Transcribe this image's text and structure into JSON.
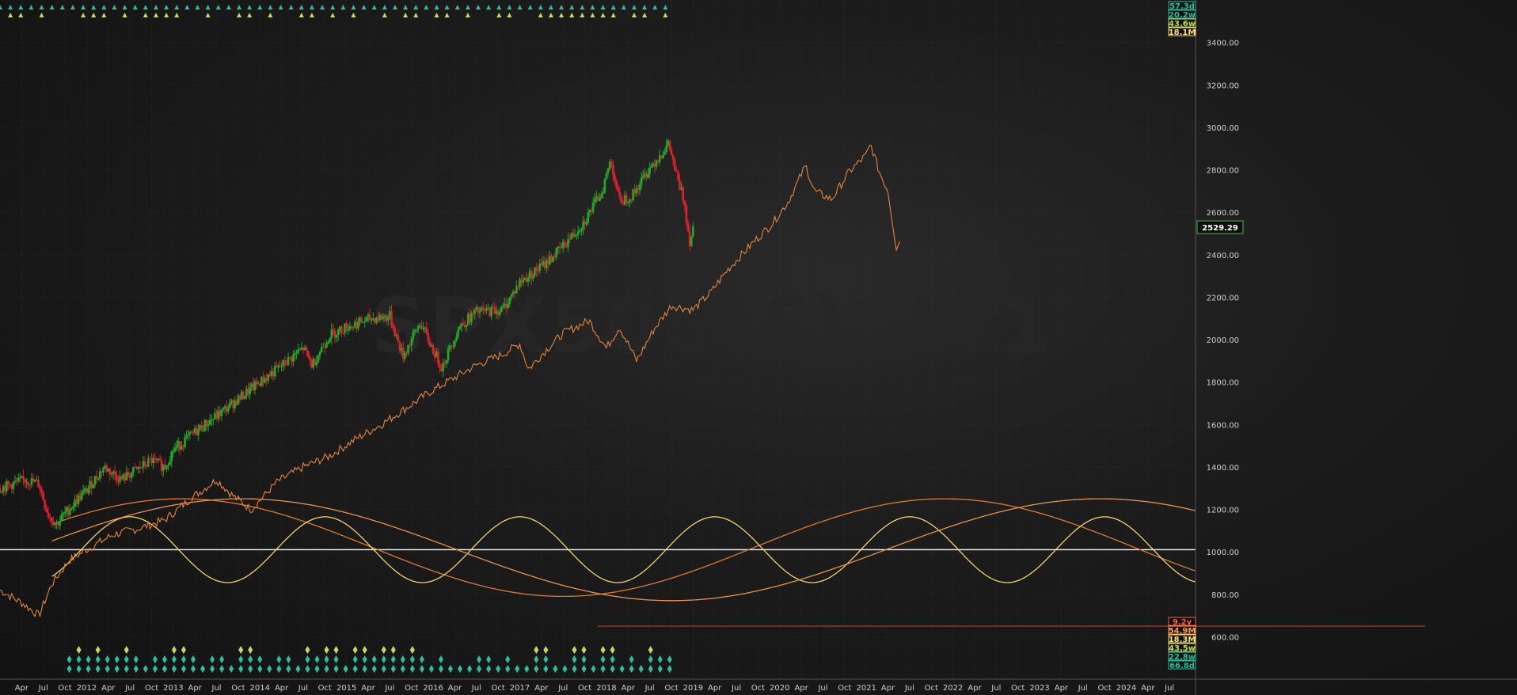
{
  "chart_data": {
    "type": "line",
    "title": "SPX500(£), W1",
    "y_axis": {
      "range": [
        400,
        3600
      ],
      "ticks": [
        600,
        800,
        1000,
        1200,
        1400,
        1600,
        1800,
        2000,
        2200,
        2400,
        2600,
        2800,
        3000,
        3200,
        3400
      ],
      "tick_labels": [
        "600.00",
        "800.00",
        "1000.00",
        "1200.00",
        "1400.00",
        "1600.00",
        "1800.00",
        "2000.00",
        "2200.00",
        "2400.00",
        "2600.00",
        "2800.00",
        "3000.00",
        "3200.00",
        "3400.00"
      ]
    },
    "x_axis": {
      "range": [
        2011.0,
        2024.8
      ],
      "labels": [
        {
          "label": "Apr",
          "t": 2011.25
        },
        {
          "label": "Jul",
          "t": 2011.5
        },
        {
          "label": "Oct",
          "t": 2011.75
        },
        {
          "label": "2012",
          "t": 2012.0
        },
        {
          "label": "Apr",
          "t": 2012.25
        },
        {
          "label": "Jul",
          "t": 2012.5
        },
        {
          "label": "Oct",
          "t": 2012.75
        },
        {
          "label": "2013",
          "t": 2013.0
        },
        {
          "label": "Apr",
          "t": 2013.25
        },
        {
          "label": "Jul",
          "t": 2013.5
        },
        {
          "label": "Oct",
          "t": 2013.75
        },
        {
          "label": "2014",
          "t": 2014.0
        },
        {
          "label": "Apr",
          "t": 2014.25
        },
        {
          "label": "Jul",
          "t": 2014.5
        },
        {
          "label": "Oct",
          "t": 2014.75
        },
        {
          "label": "2015",
          "t": 2015.0
        },
        {
          "label": "Apr",
          "t": 2015.25
        },
        {
          "label": "Jul",
          "t": 2015.5
        },
        {
          "label": "Oct",
          "t": 2015.75
        },
        {
          "label": "2016",
          "t": 2016.0
        },
        {
          "label": "Apr",
          "t": 2016.25
        },
        {
          "label": "Jul",
          "t": 2016.5
        },
        {
          "label": "Oct",
          "t": 2016.75
        },
        {
          "label": "2017",
          "t": 2017.0
        },
        {
          "label": "Apr",
          "t": 2017.25
        },
        {
          "label": "Jul",
          "t": 2017.5
        },
        {
          "label": "Oct",
          "t": 2017.75
        },
        {
          "label": "2018",
          "t": 2018.0
        },
        {
          "label": "Apr",
          "t": 2018.25
        },
        {
          "label": "Jul",
          "t": 2018.5
        },
        {
          "label": "Oct",
          "t": 2018.75
        },
        {
          "label": "2019",
          "t": 2019.0
        },
        {
          "label": "Apr",
          "t": 2019.25
        },
        {
          "label": "Jul",
          "t": 2019.5
        },
        {
          "label": "Oct",
          "t": 2019.75
        },
        {
          "label": "2020",
          "t": 2020.0
        },
        {
          "label": "Apr",
          "t": 2020.25
        },
        {
          "label": "Jul",
          "t": 2020.5
        },
        {
          "label": "Oct",
          "t": 2020.75
        },
        {
          "label": "2021",
          "t": 2021.0
        },
        {
          "label": "Apr",
          "t": 2021.25
        },
        {
          "label": "Jul",
          "t": 2021.5
        },
        {
          "label": "Oct",
          "t": 2021.75
        },
        {
          "label": "2022",
          "t": 2022.0
        },
        {
          "label": "Apr",
          "t": 2022.25
        },
        {
          "label": "Jul",
          "t": 2022.5
        },
        {
          "label": "Oct",
          "t": 2022.75
        },
        {
          "label": "2023",
          "t": 2023.0
        },
        {
          "label": "Apr",
          "t": 2023.25
        },
        {
          "label": "Jul",
          "t": 2023.5
        },
        {
          "label": "Oct",
          "t": 2023.75
        },
        {
          "label": "2024",
          "t": 2024.0
        },
        {
          "label": "Apr",
          "t": 2024.25
        },
        {
          "label": "Jul",
          "t": 2024.5
        }
      ]
    },
    "last_price_label": "2529.29",
    "price_series": [
      [
        2011.0,
        1300
      ],
      [
        2011.3,
        1340
      ],
      [
        2011.45,
        1320
      ],
      [
        2011.55,
        1180
      ],
      [
        2011.65,
        1130
      ],
      [
        2011.75,
        1180
      ],
      [
        2011.9,
        1250
      ],
      [
        2012.0,
        1290
      ],
      [
        2012.2,
        1400
      ],
      [
        2012.4,
        1340
      ],
      [
        2012.55,
        1380
      ],
      [
        2012.75,
        1430
      ],
      [
        2012.9,
        1400
      ],
      [
        2013.0,
        1480
      ],
      [
        2013.3,
        1580
      ],
      [
        2013.5,
        1640
      ],
      [
        2013.75,
        1720
      ],
      [
        2014.0,
        1800
      ],
      [
        2014.2,
        1860
      ],
      [
        2014.5,
        1960
      ],
      [
        2014.6,
        1880
      ],
      [
        2014.8,
        2020
      ],
      [
        2015.0,
        2060
      ],
      [
        2015.3,
        2100
      ],
      [
        2015.5,
        2110
      ],
      [
        2015.65,
        1920
      ],
      [
        2015.85,
        2080
      ],
      [
        2016.0,
        1950
      ],
      [
        2016.1,
        1870
      ],
      [
        2016.3,
        2060
      ],
      [
        2016.5,
        2130
      ],
      [
        2016.8,
        2140
      ],
      [
        2017.0,
        2270
      ],
      [
        2017.3,
        2360
      ],
      [
        2017.5,
        2440
      ],
      [
        2017.75,
        2560
      ],
      [
        2017.95,
        2700
      ],
      [
        2018.05,
        2850
      ],
      [
        2018.15,
        2650
      ],
      [
        2018.3,
        2680
      ],
      [
        2018.5,
        2810
      ],
      [
        2018.72,
        2920
      ],
      [
        2018.82,
        2750
      ],
      [
        2018.9,
        2650
      ],
      [
        2018.96,
        2460
      ],
      [
        2019.0,
        2529
      ]
    ],
    "projection_series": [
      [
        2011.0,
        820
      ],
      [
        2011.25,
        760
      ],
      [
        2011.45,
        700
      ],
      [
        2011.6,
        850
      ],
      [
        2011.8,
        960
      ],
      [
        2012.0,
        1010
      ],
      [
        2012.3,
        1080
      ],
      [
        2012.6,
        1110
      ],
      [
        2012.9,
        1150
      ],
      [
        2013.2,
        1250
      ],
      [
        2013.5,
        1340
      ],
      [
        2013.7,
        1260
      ],
      [
        2013.9,
        1200
      ],
      [
        2014.2,
        1330
      ],
      [
        2014.5,
        1400
      ],
      [
        2014.8,
        1450
      ],
      [
        2015.1,
        1530
      ],
      [
        2015.4,
        1600
      ],
      [
        2015.7,
        1680
      ],
      [
        2015.95,
        1750
      ],
      [
        2016.2,
        1810
      ],
      [
        2016.5,
        1880
      ],
      [
        2016.8,
        1930
      ],
      [
        2017.0,
        1980
      ],
      [
        2017.1,
        1860
      ],
      [
        2017.3,
        1950
      ],
      [
        2017.5,
        2030
      ],
      [
        2017.8,
        2090
      ],
      [
        2018.0,
        1960
      ],
      [
        2018.15,
        2060
      ],
      [
        2018.35,
        1900
      ],
      [
        2018.55,
        2050
      ],
      [
        2018.75,
        2160
      ],
      [
        2019.0,
        2140
      ],
      [
        2019.2,
        2220
      ],
      [
        2019.4,
        2330
      ],
      [
        2019.7,
        2460
      ],
      [
        2019.9,
        2540
      ],
      [
        2020.1,
        2650
      ],
      [
        2020.3,
        2820
      ],
      [
        2020.4,
        2700
      ],
      [
        2020.6,
        2660
      ],
      [
        2020.8,
        2790
      ],
      [
        2021.0,
        2870
      ],
      [
        2021.05,
        2920
      ],
      [
        2021.15,
        2790
      ],
      [
        2021.25,
        2700
      ],
      [
        2021.35,
        2420
      ],
      [
        2021.4,
        2490
      ]
    ],
    "cycles": [
      {
        "color": "#e07a2e",
        "period": 8.8,
        "amp": 230,
        "center": 1020,
        "peak": 2013.1
      },
      {
        "color": "#f4d36a",
        "period": 2.25,
        "amp": 155,
        "center": 1010,
        "peak": 2012.5
      },
      {
        "color": "#e8924a",
        "period": 9.9,
        "amp": 240,
        "center": 1010,
        "peak": 2023.7
      }
    ],
    "baseline": 1010,
    "hline_price": 650,
    "right_badges_top": [
      {
        "text": "57.3d",
        "color": "#2bbf9a"
      },
      {
        "text": "20.2w",
        "color": "#2bbf9a"
      },
      {
        "text": "43.6w",
        "color": "#c2dd58"
      },
      {
        "text": "18.1M",
        "color": "#ffe27a"
      }
    ],
    "right_badges_bottom": [
      {
        "text": "9.2y",
        "color": "#ff5c3a"
      },
      {
        "text": "54.9M",
        "color": "#ffa04a"
      },
      {
        "text": "18.3M",
        "color": "#ffe27a"
      },
      {
        "text": "43.5w",
        "color": "#c2dd58"
      },
      {
        "text": "22.8w",
        "color": "#2bbf9a"
      },
      {
        "text": "66.8d",
        "color": "#2bbf9a"
      }
    ],
    "colors": {
      "up_bar": "#1faa2a",
      "down_bar": "#e0202a",
      "projection": "#e8843a",
      "baseline": "#ffffff",
      "hline": "#d9401a",
      "grid": "#3a3a3a",
      "axis_text": "#cfcfcf"
    }
  }
}
